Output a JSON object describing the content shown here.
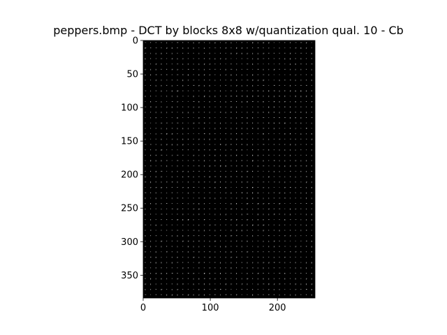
{
  "chart_data": {
    "type": "heatmap",
    "title": "peppers.bmp - DCT by blocks 8x8  w/quantization qual. 10 - Cb",
    "xlabel": "",
    "ylabel": "",
    "xlim": [
      0,
      256
    ],
    "ylim": [
      384,
      0
    ],
    "x_ticks": [
      0,
      100,
      200
    ],
    "y_ticks": [
      0,
      50,
      100,
      150,
      200,
      250,
      300,
      350
    ],
    "block_size": 8,
    "image_width": 256,
    "image_height": 384,
    "colormap": "gray",
    "background_color": "#000000",
    "grid": false,
    "legend": "none"
  }
}
